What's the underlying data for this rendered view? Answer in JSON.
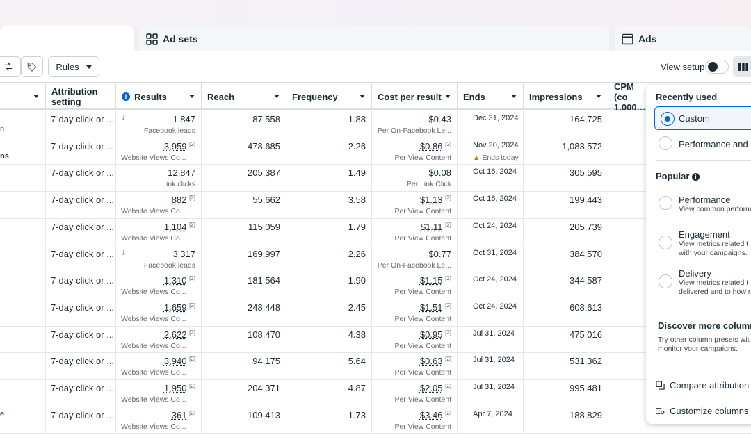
{
  "tabs": {
    "adsets": "Ad sets",
    "ads": "Ads"
  },
  "toolbar": {
    "rules": "Rules",
    "view_setup": "View setup"
  },
  "columns": [
    "Attribution setting",
    "Results",
    "Reach",
    "Frequency",
    "Cost per result",
    "Ends",
    "Impressions",
    "CPM (co 1,000…"
  ],
  "left_fragments": [
    "n",
    "ns",
    "e"
  ],
  "rows": [
    {
      "attr": "7-day click or ...",
      "results": "1,847",
      "fn": "",
      "rsub": "Facebook leads",
      "lead": true,
      "reach": "87,558",
      "freq": "1.88",
      "cpr": "$0.43",
      "cfn": "",
      "csub": "Per On-Facebook Le...",
      "ends": "Dec 31, 2024",
      "esub": "",
      "impr": "164,725"
    },
    {
      "attr": "7-day click or ...",
      "results": "3,959",
      "fn": "[2]",
      "rsub": "Website Views Co...",
      "lead": false,
      "reach": "478,685",
      "freq": "2.26",
      "cpr": "$0.86",
      "cfn": "[2]",
      "csub": "Per View Content",
      "ends": "Nov 20, 2024",
      "esub": "Ends today",
      "impr": "1,083,572"
    },
    {
      "attr": "7-day click or ...",
      "results": "12,847",
      "fn": "",
      "rsub": "Link clicks",
      "lead": false,
      "reach": "205,387",
      "freq": "1.49",
      "cpr": "$0.08",
      "cfn": "",
      "csub": "Per Link Click",
      "ends": "Oct 16, 2024",
      "esub": "",
      "impr": "305,595"
    },
    {
      "attr": "7-day click or ...",
      "results": "882",
      "fn": "[2]",
      "rsub": "Website Views Co...",
      "lead": false,
      "reach": "55,662",
      "freq": "3.58",
      "cpr": "$1.13",
      "cfn": "[2]",
      "csub": "Per View Content",
      "ends": "Oct 16, 2024",
      "esub": "",
      "impr": "199,443"
    },
    {
      "attr": "7-day click or ...",
      "results": "1,104",
      "fn": "[2]",
      "rsub": "Website Views Co...",
      "lead": false,
      "reach": "115,059",
      "freq": "1.79",
      "cpr": "$1.11",
      "cfn": "[2]",
      "csub": "Per View Content",
      "ends": "Oct 24, 2024",
      "esub": "",
      "impr": "205,739"
    },
    {
      "attr": "7-day click or ...",
      "results": "3,317",
      "fn": "",
      "rsub": "Facebook leads",
      "lead": true,
      "reach": "169,997",
      "freq": "2.26",
      "cpr": "$0.77",
      "cfn": "",
      "csub": "Per On-Facebook Le...",
      "ends": "Oct 31, 2024",
      "esub": "",
      "impr": "384,570"
    },
    {
      "attr": "7-day click or ...",
      "results": "1,310",
      "fn": "[2]",
      "rsub": "Website Views Co...",
      "lead": false,
      "reach": "181,564",
      "freq": "1.90",
      "cpr": "$1.15",
      "cfn": "[2]",
      "csub": "Per View Content",
      "ends": "Oct 24, 2024",
      "esub": "",
      "impr": "344,587"
    },
    {
      "attr": "7-day click or ...",
      "results": "1,659",
      "fn": "[2]",
      "rsub": "Website Views Co...",
      "lead": false,
      "reach": "248,448",
      "freq": "2.45",
      "cpr": "$1.51",
      "cfn": "[2]",
      "csub": "Per View Content",
      "ends": "Oct 24, 2024",
      "esub": "",
      "impr": "608,613"
    },
    {
      "attr": "7-day click or ...",
      "results": "2,622",
      "fn": "[2]",
      "rsub": "Website Views Co...",
      "lead": false,
      "reach": "108,470",
      "freq": "4.38",
      "cpr": "$0.95",
      "cfn": "[2]",
      "csub": "Per View Content",
      "ends": "Jul 31, 2024",
      "esub": "",
      "impr": "475,016"
    },
    {
      "attr": "7-day click or ...",
      "results": "3,940",
      "fn": "[2]",
      "rsub": "Website Views Co...",
      "lead": false,
      "reach": "94,175",
      "freq": "5.64",
      "cpr": "$0.63",
      "cfn": "[2]",
      "csub": "Per View Content",
      "ends": "Jul 31, 2024",
      "esub": "",
      "impr": "531,362"
    },
    {
      "attr": "7-day click or ...",
      "results": "1,950",
      "fn": "[2]",
      "rsub": "Website Views Co...",
      "lead": false,
      "reach": "204,371",
      "freq": "4.87",
      "cpr": "$2.05",
      "cfn": "[2]",
      "csub": "Per View Content",
      "ends": "Jul 31, 2024",
      "esub": "",
      "impr": "995,481"
    },
    {
      "attr": "7-day click or ...",
      "results": "361",
      "fn": "[2]",
      "rsub": "Website Views Co...",
      "lead": false,
      "reach": "109,413",
      "freq": "1.73",
      "cpr": "$3.46",
      "cfn": "[2]",
      "csub": "Per View Content",
      "ends": "Apr 7, 2024",
      "esub": "",
      "impr": "188,829"
    }
  ],
  "panel": {
    "recently_used": "Recently used",
    "custom": "Custom",
    "perf_and": "Performance and c",
    "popular": "Popular",
    "performance": "Performance",
    "performance_desc": "View common perform",
    "engagement": "Engagement",
    "engagement_desc1": "View metrics related t",
    "engagement_desc2": "with your campaigns.",
    "delivery": "Delivery",
    "delivery_desc1": "View metrics related t",
    "delivery_desc2": "delivered and to how r",
    "discover": "Discover more column",
    "discover_desc1": "Try other column presets wit",
    "discover_desc2": "monitor your campaigns.",
    "compare": "Compare attribution s",
    "customize": "Customize columns"
  }
}
